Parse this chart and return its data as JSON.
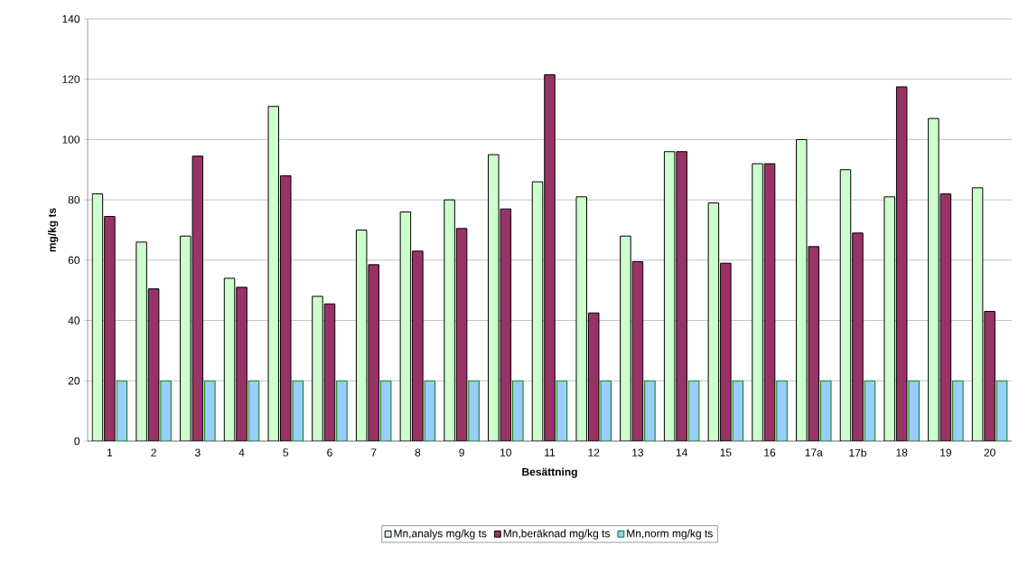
{
  "chart_data": {
    "type": "bar",
    "xlabel": "Besättning",
    "ylabel": "mg/kg ts",
    "categories": [
      "1",
      "2",
      "3",
      "4",
      "5",
      "6",
      "7",
      "8",
      "9",
      "10",
      "11",
      "12",
      "13",
      "14",
      "15",
      "16",
      "17a",
      "17b",
      "18",
      "19",
      "20"
    ],
    "series": [
      {
        "name": "Mn,analys mg/kg ts",
        "color": "#ccffcc",
        "values": [
          82,
          66,
          68,
          54,
          111,
          48,
          70,
          76,
          80,
          95,
          86,
          81,
          68,
          96,
          79,
          92,
          100,
          90,
          81,
          107,
          84
        ]
      },
      {
        "name": "Mn,beräknad mg/kg ts",
        "color": "#993366",
        "values": [
          74.5,
          50.5,
          94.5,
          51,
          88,
          45.5,
          58.5,
          63,
          70.5,
          77,
          121.5,
          42.5,
          59.5,
          96,
          59,
          92,
          64.5,
          69,
          117.5,
          82,
          43
        ]
      },
      {
        "name": "Mn,norm mg/kg ts",
        "color": "#99ccff",
        "values": [
          20,
          20,
          20,
          20,
          20,
          20,
          20,
          20,
          20,
          20,
          20,
          20,
          20,
          20,
          20,
          20,
          20,
          20,
          20,
          20,
          20
        ]
      }
    ],
    "ylim": [
      0,
      140
    ],
    "yticks": [
      0,
      20,
      40,
      60,
      80,
      100,
      120,
      140
    ],
    "grid": "y",
    "legend": "bottom"
  }
}
